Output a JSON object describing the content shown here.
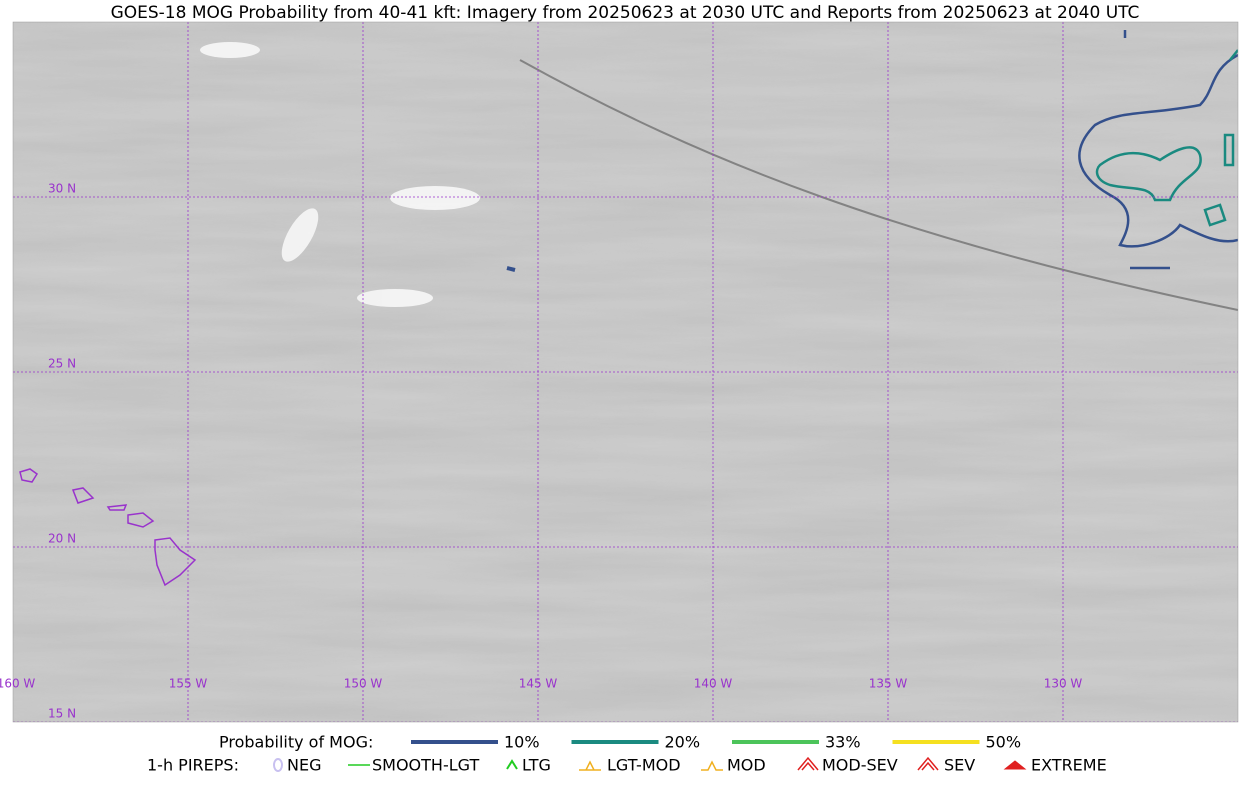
{
  "title": "GOES-18 MOG Probability from 40-41 kft: Imagery from 20250623 at 2030 UTC and Reports from 20250623 at 2040 UTC",
  "map": {
    "lat_labels": [
      "30 N",
      "25 N",
      "20 N",
      "15 N"
    ],
    "lon_labels": [
      "160 W",
      "155 W",
      "150 W",
      "145 W",
      "140 W",
      "135 W",
      "130 W"
    ]
  },
  "legend": {
    "probability_title": "Probability of MOG:",
    "probability_items": [
      {
        "label": "10%",
        "color": "#34508c"
      },
      {
        "label": "20%",
        "color": "#1a8a80"
      },
      {
        "label": "33%",
        "color": "#4cc45a"
      },
      {
        "label": "50%",
        "color": "#f5e020"
      }
    ],
    "pirep_title": "1-h PIREPS:",
    "pirep_items": [
      {
        "label": "NEG",
        "color": "#c8c0f0"
      },
      {
        "label": "SMOOTH-LGT",
        "color": "#22cc22"
      },
      {
        "label": "LTG",
        "color": "#22cc22"
      },
      {
        "label": "LGT-MOD",
        "color": "#f0b020"
      },
      {
        "label": "MOD",
        "color": "#f0b020"
      },
      {
        "label": "MOD-SEV",
        "color": "#e02020"
      },
      {
        "label": "SEV",
        "color": "#e02020"
      },
      {
        "label": "EXTREME",
        "color": "#e02020"
      }
    ]
  }
}
